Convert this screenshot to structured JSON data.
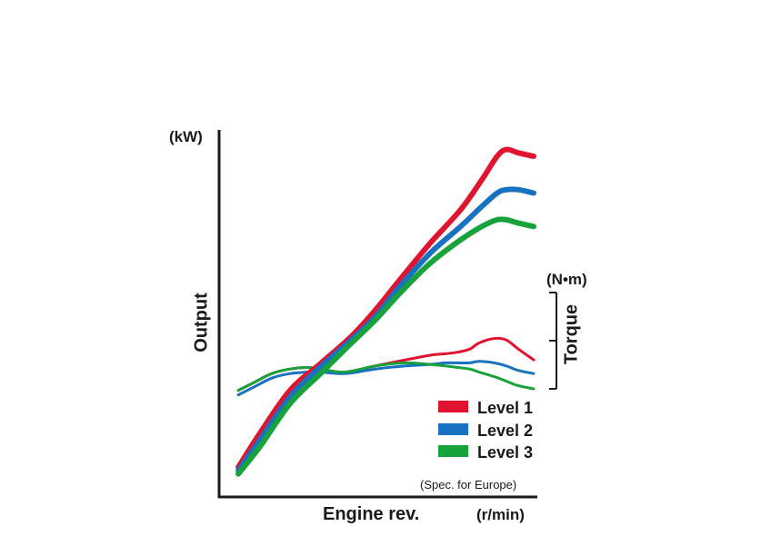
{
  "chart_data": {
    "type": "line",
    "title": "",
    "xlabel": "Engine rev.",
    "x_unit": "(r/min)",
    "ylabel": "Output",
    "y_unit": "(kW)",
    "y2label": "Torque",
    "y2_unit": "(N•m)",
    "note": "(Spec. for Europe)",
    "ticks_labeled": false,
    "grid": false,
    "legend_placement": "bottom-right",
    "xlim": [
      0,
      100
    ],
    "ylim": [
      0,
      100
    ],
    "series": [
      {
        "name": "Level 1",
        "measure": "Output",
        "color": "#e0142e",
        "x": [
          3,
          10,
          20,
          30,
          40,
          48,
          56,
          66,
          76,
          83,
          88,
          91,
          95,
          100
        ],
        "y": [
          7,
          17,
          30,
          38,
          46,
          54,
          63,
          74,
          84,
          93,
          100,
          102,
          101,
          100
        ]
      },
      {
        "name": "Level 2",
        "measure": "Output",
        "color": "#1872c0",
        "x": [
          3,
          10,
          20,
          30,
          40,
          48,
          56,
          66,
          76,
          83,
          88,
          91,
          95,
          100
        ],
        "y": [
          6,
          15,
          28,
          37,
          45,
          52,
          61,
          71,
          79,
          85,
          89,
          90,
          90,
          89
        ]
      },
      {
        "name": "Level 3",
        "measure": "Output",
        "color": "#17a23c",
        "x": [
          3,
          10,
          20,
          30,
          40,
          48,
          56,
          66,
          76,
          83,
          88,
          91,
          95,
          100
        ],
        "y": [
          5,
          13,
          26,
          35,
          44,
          51,
          59,
          68,
          75,
          79,
          81,
          81,
          80,
          79
        ]
      },
      {
        "name": "Level 1",
        "measure": "Torque",
        "color": "#e0142e",
        "x": [
          3,
          8,
          14,
          20,
          26,
          30,
          38,
          48,
          58,
          66,
          71,
          75,
          79,
          82,
          87,
          91,
          95,
          100
        ],
        "y": [
          24,
          29,
          35,
          38,
          39,
          38,
          36,
          40,
          44,
          47,
          48,
          49,
          51,
          55,
          58,
          57,
          51,
          44
        ]
      },
      {
        "name": "Level 2",
        "measure": "Torque",
        "color": "#1872c0",
        "x": [
          3,
          8,
          14,
          20,
          26,
          30,
          38,
          48,
          58,
          66,
          71,
          75,
          79,
          82,
          87,
          91,
          95,
          100
        ],
        "y": [
          21,
          26,
          32,
          35,
          36,
          36,
          35,
          38,
          40,
          41,
          42,
          42,
          42,
          43,
          42,
          40,
          37,
          35
        ]
      },
      {
        "name": "Level 3",
        "measure": "Torque",
        "color": "#17a23c",
        "x": [
          3,
          8,
          14,
          20,
          26,
          30,
          38,
          48,
          58,
          66,
          71,
          75,
          79,
          82,
          87,
          91,
          95,
          100
        ],
        "y": [
          24,
          29,
          35,
          38,
          39,
          38,
          36,
          40,
          42,
          41,
          40,
          39,
          38,
          36,
          33,
          30,
          27,
          25
        ]
      }
    ]
  }
}
